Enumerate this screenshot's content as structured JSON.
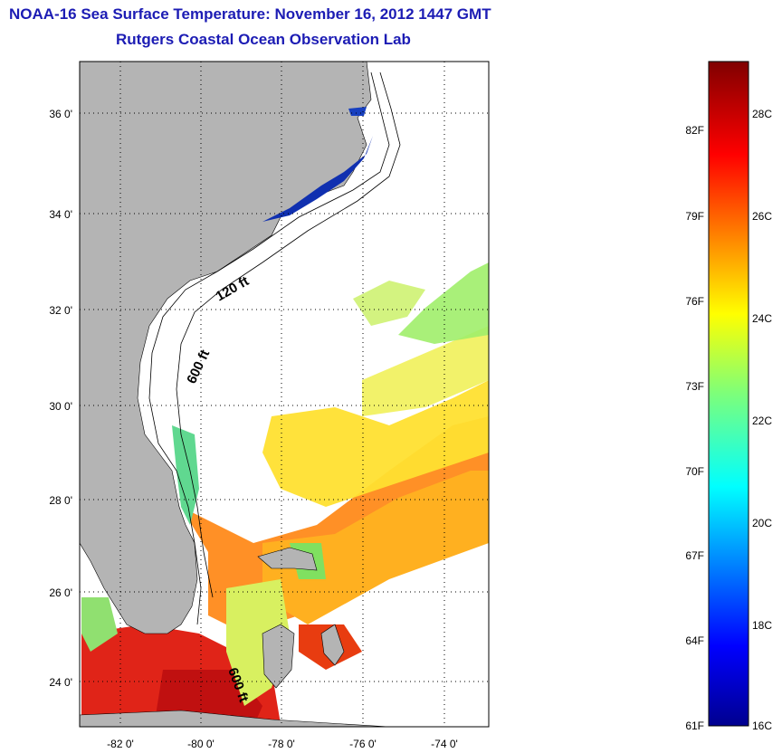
{
  "header": {
    "title": "NOAA-16 Sea Surface Temperature:  November 16, 2012 1447 GMT",
    "subtitle": "Rutgers Coastal Ocean Observation Lab"
  },
  "map": {
    "lat_labels": [
      "36 0'",
      "34 0'",
      "32 0'",
      "30 0'",
      "28 0'",
      "26 0'",
      "24 0'"
    ],
    "lon_labels": [
      "-82 0'",
      "-80 0'",
      "-78 0'",
      "-76 0'",
      "-74 0'"
    ],
    "contour_labels": [
      "120 ft",
      "600 ft",
      "600 ft"
    ],
    "colors": {
      "land": "#b4b4b4",
      "no_data": "#ffffff",
      "grid": "#000000"
    }
  },
  "colorbar": {
    "fahrenheit_labels": [
      "82F",
      "79F",
      "76F",
      "73F",
      "70F",
      "67F",
      "64F",
      "61F"
    ],
    "celsius_labels": [
      "28C",
      "26C",
      "24C",
      "22C",
      "20C",
      "18C",
      "16C"
    ]
  }
}
